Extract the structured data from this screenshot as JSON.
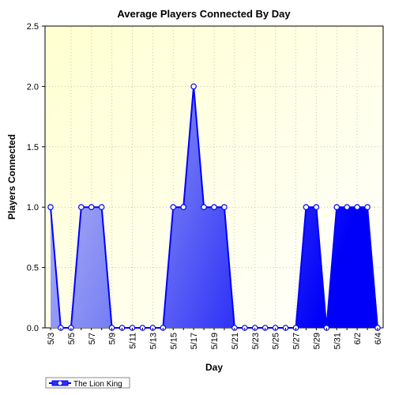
{
  "chart_data": {
    "type": "area",
    "title": "Average Players Connected By Day",
    "xlabel": "Day",
    "ylabel": "Players Connected",
    "ylim": [
      0,
      2.5
    ],
    "y_ticks": [
      "0.0",
      "0.5",
      "1.0",
      "1.5",
      "2.0",
      "2.5"
    ],
    "x_tick_labels": [
      "5/3",
      "5/5",
      "5/7",
      "5/9",
      "5/11",
      "5/13",
      "5/15",
      "5/17",
      "5/19",
      "5/21",
      "5/23",
      "5/25",
      "5/27",
      "5/29",
      "5/31",
      "6/2",
      "6/4"
    ],
    "grid": true,
    "legend_position": "bottom-left",
    "series": [
      {
        "name": "The Lion King",
        "color": "#0000ff",
        "x": [
          "5/3",
          "5/4",
          "5/5",
          "5/6",
          "5/7",
          "5/8",
          "5/9",
          "5/10",
          "5/11",
          "5/12",
          "5/13",
          "5/14",
          "5/15",
          "5/16",
          "5/17",
          "5/18",
          "5/19",
          "5/20",
          "5/21",
          "5/22",
          "5/23",
          "5/24",
          "5/25",
          "5/26",
          "5/27",
          "5/28",
          "5/29",
          "5/30",
          "5/31",
          "6/1",
          "6/2",
          "6/3",
          "6/4"
        ],
        "values": [
          1,
          0,
          0,
          1,
          1,
          1,
          0,
          0,
          0,
          0,
          0,
          0,
          1,
          1,
          2,
          1,
          1,
          1,
          0,
          0,
          0,
          0,
          0,
          0,
          0,
          1,
          1,
          0,
          1,
          1,
          1,
          1,
          0
        ]
      }
    ]
  }
}
